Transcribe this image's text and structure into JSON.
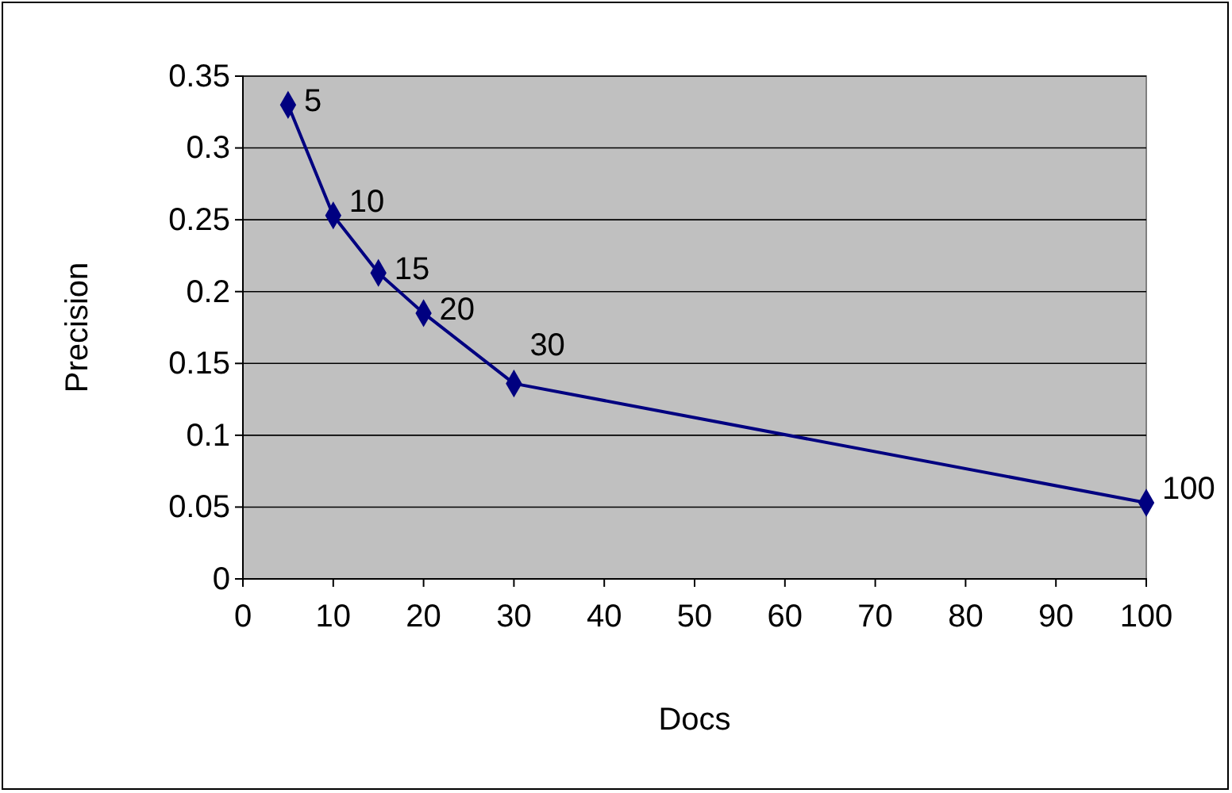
{
  "chart_data": {
    "type": "line",
    "xlabel": "Docs",
    "ylabel": "Precision",
    "x": [
      5,
      10,
      15,
      20,
      30,
      100
    ],
    "series": [
      {
        "color": "#000080",
        "values": [
          0.33,
          0.253,
          0.213,
          0.185,
          0.136,
          0.053
        ]
      }
    ],
    "xlim": [
      0,
      100
    ],
    "xticks": [
      0,
      10,
      20,
      30,
      40,
      50,
      60,
      70,
      80,
      90,
      100
    ],
    "ylim": [
      0,
      0.35
    ],
    "yticks": [
      0,
      0.05,
      0.1,
      0.15,
      0.2,
      0.25,
      0.3,
      0.35
    ],
    "grid": "y",
    "marker": "diamond",
    "line_style": "solid",
    "annotations": [
      {
        "text": "5",
        "x": 5,
        "y": 0.33
      },
      {
        "text": "10",
        "x": 10,
        "y": 0.253
      },
      {
        "text": "15",
        "x": 15,
        "y": 0.213
      },
      {
        "text": "20",
        "x": 20,
        "y": 0.185
      },
      {
        "text": "30",
        "x": 30,
        "y": 0.136
      },
      {
        "text": "100",
        "x": 100,
        "y": 0.053
      }
    ]
  }
}
